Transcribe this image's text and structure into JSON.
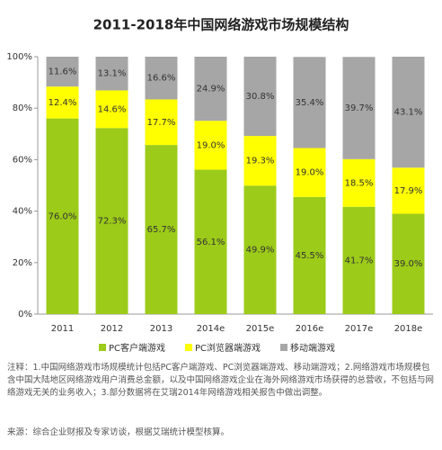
{
  "chart_data": {
    "type": "stacked_bar",
    "title": "2011-2018年中国网络游戏市场规模结构",
    "categories": [
      "2011",
      "2012",
      "2013",
      "2014e",
      "2015e",
      "2016e",
      "2017e",
      "2018e"
    ],
    "series": [
      {
        "name": "PC客户端游戏",
        "color": "#9ccb19",
        "values": [
          76.0,
          72.3,
          65.7,
          56.1,
          49.9,
          45.5,
          41.7,
          39.0
        ],
        "value_labels": [
          "76.0%",
          "72.3%",
          "65.7%",
          "56.1%",
          "49.9%",
          "45.5%",
          "41.7%",
          "39.0%"
        ]
      },
      {
        "name": "PC浏览器端游戏",
        "color": "#ffff00",
        "values": [
          12.4,
          14.6,
          17.7,
          19.0,
          19.3,
          19.0,
          18.5,
          17.9
        ],
        "value_labels": [
          "12.4%",
          "14.6%",
          "17.7%",
          "19.0%",
          "19.3%",
          "19.0%",
          "18.5%",
          "17.9%"
        ]
      },
      {
        "name": "移动端游戏",
        "color": "#a6a6a6",
        "values": [
          11.6,
          13.1,
          16.6,
          24.9,
          30.8,
          35.4,
          39.7,
          43.1
        ],
        "value_labels": [
          "11.6%",
          "13.1%",
          "16.6%",
          "24.9%",
          "30.8%",
          "35.4%",
          "39.7%",
          "43.1%"
        ]
      }
    ],
    "ylim": [
      0,
      100
    ],
    "yticks": [
      {
        "value": 0,
        "label": "0%"
      },
      {
        "value": 20,
        "label": "20%"
      },
      {
        "value": 40,
        "label": "40%"
      },
      {
        "value": 60,
        "label": "60%"
      },
      {
        "value": 80,
        "label": "80%"
      },
      {
        "value": 100,
        "label": "100%"
      }
    ],
    "grid": false,
    "legend": "bottom",
    "note": "注释：1.中国网络游戏市场规模统计包括PC客户端游戏、PC浏览器端游戏、移动端游戏；2.网络游戏市场规模包含中国大陆地区网络游戏用户消费总金额，以及中国网络游戏企业在海外网络游戏市场获得的总营收，不包括与网络游戏无关的业务收入；3.部分数据将在艾瑞2014年网络游戏相关报告中做出调整。",
    "source": "来源：综合企业财报及专家访谈，根据艾瑞统计模型核算。"
  }
}
